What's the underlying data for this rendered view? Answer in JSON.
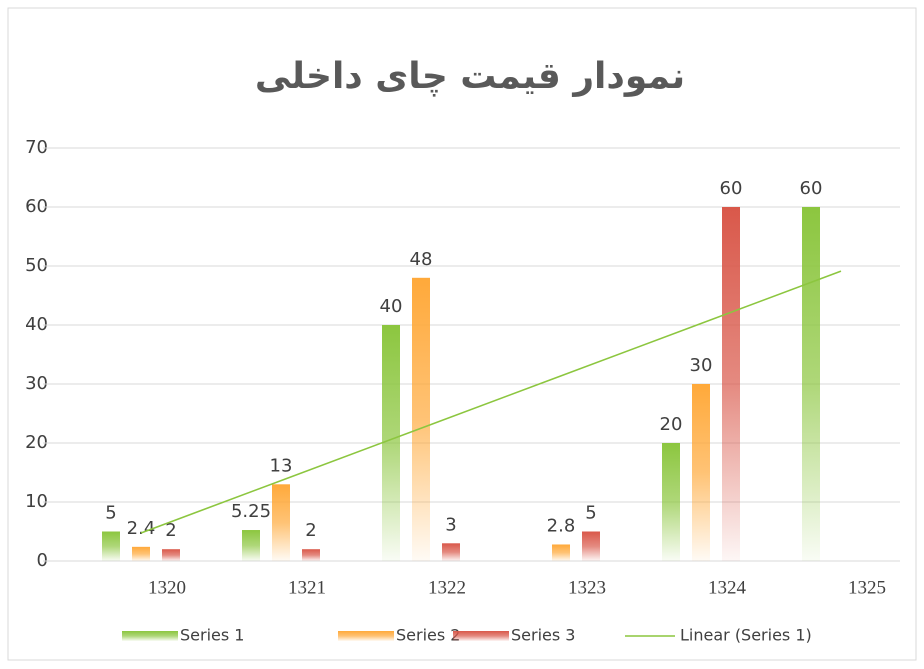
{
  "chart_data": {
    "type": "bar",
    "title": "نمودار قیمت چای داخلی",
    "categories": [
      "1320",
      "1321",
      "1322",
      "1323",
      "1324",
      "1325"
    ],
    "series": [
      {
        "name": "Series 1",
        "color": "#8cc63f",
        "values": [
          5,
          5.25,
          40,
          null,
          20,
          60
        ]
      },
      {
        "name": "Series 2",
        "color": "#ffa93a",
        "values": [
          2.4,
          13,
          48,
          2.8,
          30,
          null
        ]
      },
      {
        "name": "Series 3",
        "color": "#d9584a",
        "values": [
          2,
          2,
          3,
          5,
          60,
          null
        ]
      },
      {
        "name": "Linear (Series 1)",
        "type": "line",
        "color": "#8cc63f",
        "values": [
          4.75,
          13.63,
          22.5,
          31.38,
          40.25,
          49.13
        ]
      }
    ],
    "ylim": [
      0,
      70
    ],
    "yticks": [
      0,
      10,
      20,
      30,
      40,
      50,
      60,
      70
    ],
    "grid": true,
    "legend": "bottom"
  }
}
